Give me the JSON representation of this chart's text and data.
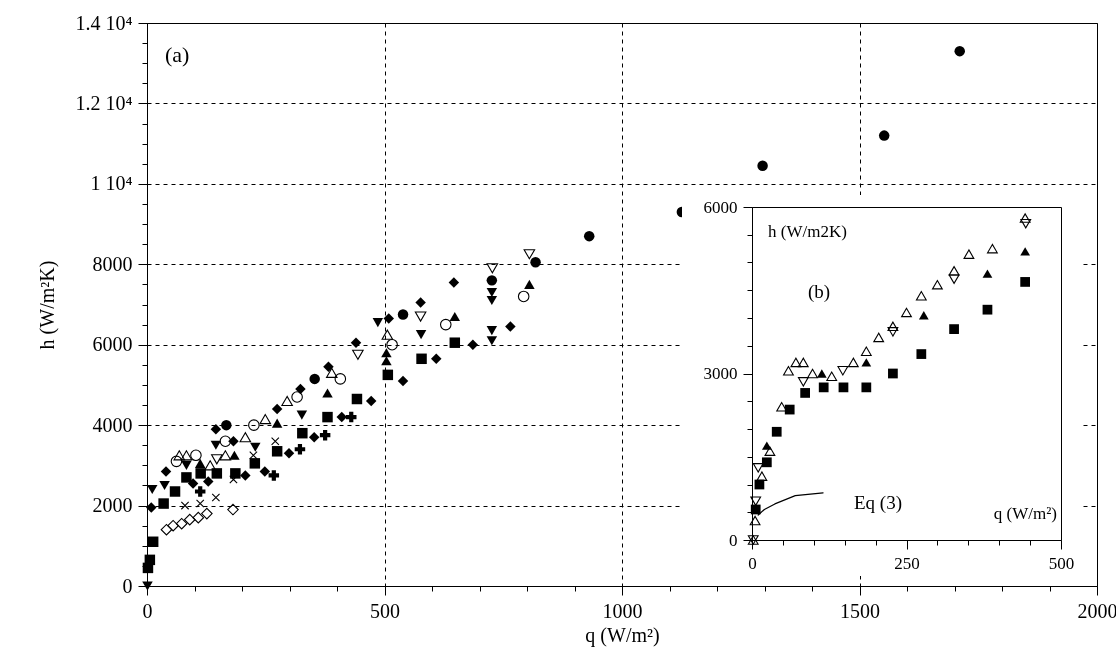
{
  "chart_data": [
    {
      "type": "scatter",
      "xlabel": "q  (W/m²)",
      "ylabel": "h  (W/m²K)",
      "annotations": [
        "(a)"
      ],
      "grid": true,
      "xlim": [
        0,
        2000
      ],
      "ylim": [
        0,
        14000
      ],
      "xticks": [
        0,
        {
          "value": 100,
          "label": null
        },
        {
          "value": 200,
          "label": null
        },
        {
          "value": 300,
          "label": null
        },
        {
          "value": 400,
          "label": null
        },
        500,
        {
          "value": 600,
          "label": null
        },
        {
          "value": 700,
          "label": null
        },
        {
          "value": 800,
          "label": null
        },
        {
          "value": 900,
          "label": null
        },
        1000,
        {
          "value": 1100,
          "label": null
        },
        {
          "value": 1200,
          "label": null
        },
        {
          "value": 1300,
          "label": null
        },
        {
          "value": 1400,
          "label": null
        },
        1500,
        {
          "value": 1600,
          "label": null
        },
        {
          "value": 1700,
          "label": null
        },
        {
          "value": 1800,
          "label": null
        },
        {
          "value": 1900,
          "label": null
        },
        2000
      ],
      "yticks": [
        0,
        {
          "value": 500,
          "label": null
        },
        {
          "value": 1000,
          "label": null
        },
        {
          "value": 1500,
          "label": null
        },
        2000,
        {
          "value": 2500,
          "label": null
        },
        {
          "value": 3000,
          "label": null
        },
        {
          "value": 3500,
          "label": null
        },
        4000,
        {
          "value": 4500,
          "label": null
        },
        {
          "value": 5000,
          "label": null
        },
        {
          "value": 5500,
          "label": null
        },
        6000,
        {
          "value": 6500,
          "label": null
        },
        {
          "value": 7000,
          "label": null
        },
        {
          "value": 7500,
          "label": null
        },
        8000,
        {
          "value": 8500,
          "label": null
        },
        {
          "value": 9000,
          "label": null
        },
        {
          "value": 9500,
          "label": null
        },
        {
          "value": 10000,
          "label": "1 10⁴"
        },
        {
          "value": 10500,
          "label": null
        },
        {
          "value": 11000,
          "label": null
        },
        {
          "value": 11500,
          "label": null
        },
        {
          "value": 12000,
          "label": "1.2 10⁴"
        },
        {
          "value": 12500,
          "label": null
        },
        {
          "value": 13000,
          "label": null
        },
        {
          "value": 13500,
          "label": null
        },
        {
          "value": 14000,
          "label": "1.4 10⁴"
        }
      ],
      "series": [
        {
          "marker": "circle",
          "color": "#000000",
          "x": [
            167,
            353,
            539,
            726,
            818,
            931,
            1126,
            1296,
            1552,
            1711
          ],
          "values": [
            4000,
            5150,
            6750,
            7600,
            8050,
            8700,
            9300,
            10450,
            11200,
            13300
          ]
        },
        {
          "marker": "circle-open",
          "color": "#000000",
          "x": [
            62,
            103,
            165,
            225,
            316,
            407,
            516,
            629,
            793
          ],
          "values": [
            3100,
            3250,
            3600,
            4000,
            4700,
            5150,
            6000,
            6500,
            7200
          ]
        },
        {
          "marker": "square",
          "color": "#000000",
          "x": [
            2,
            6,
            13,
            35,
            59,
            83,
            113,
            147,
            186,
            227,
            274,
            327,
            380,
            442,
            507,
            578,
            648
          ],
          "values": [
            450,
            650,
            1100,
            2050,
            2350,
            2700,
            2800,
            2800,
            2800,
            3050,
            3350,
            3800,
            4200,
            4650,
            5250,
            5650,
            6050
          ]
        },
        {
          "marker": "diamond",
          "color": "#000000",
          "x": [
            9,
            40,
            97,
            129,
            145,
            182,
            207,
            248,
            274,
            299,
            323,
            352,
            382,
            410,
            440,
            472,
            509,
            539,
            576,
            609,
            646,
            686,
            765
          ],
          "values": [
            1950,
            2850,
            2550,
            2600,
            3900,
            3600,
            2750,
            2850,
            4400,
            3300,
            4900,
            3700,
            5450,
            4200,
            6050,
            4600,
            6650,
            5100,
            7050,
            5650,
            7550,
            6000,
            6450
          ]
        },
        {
          "marker": "diamond-open",
          "color": "#000000",
          "x": [
            41,
            55,
            73,
            90,
            108,
            126,
            181
          ],
          "values": [
            1400,
            1500,
            1550,
            1650,
            1700,
            1800,
            1900
          ]
        },
        {
          "marker": "triangle",
          "color": "#000000",
          "x": [
            112,
            184,
            274,
            380,
            504,
            504,
            648,
            805
          ],
          "values": [
            3050,
            3250,
            4050,
            4800,
            5800,
            5600,
            6700,
            7500
          ]
        },
        {
          "marker": "triangle-open",
          "color": "#000000",
          "x": [
            68,
            83,
            133,
            165,
            207,
            249,
            295,
            389,
            506
          ],
          "values": [
            3250,
            3250,
            3000,
            3250,
            3700,
            4150,
            4600,
            5300,
            6250
          ]
        },
        {
          "marker": "triangle-down",
          "color": "#000000",
          "x": [
            1,
            11,
            37,
            83,
            145,
            228,
            326,
            486,
            577,
            726,
            726,
            726,
            726
          ],
          "values": [
            0,
            2400,
            2500,
            3000,
            3500,
            3450,
            4250,
            6550,
            6250,
            7300,
            7100,
            6350,
            6100
          ]
        },
        {
          "marker": "triangle-down-open",
          "color": "#000000",
          "x": [
            147,
            444,
            576,
            727,
            805
          ],
          "values": [
            3150,
            5750,
            6700,
            7900,
            8250
          ]
        },
        {
          "marker": "plus",
          "color": "#000000",
          "x": [
            112,
            267,
            322,
            375,
            430
          ],
          "values": [
            2350,
            2750,
            3400,
            3750,
            4200
          ]
        },
        {
          "marker": "cross",
          "color": "#000000",
          "x": [
            80,
            112,
            145,
            182,
            224,
            270
          ],
          "values": [
            2000,
            2050,
            2200,
            2650,
            3250,
            3600
          ]
        }
      ]
    },
    {
      "type": "scatter",
      "xlabel": "q (W/m²)",
      "ylabel": "h (W/m2K)",
      "annotations": [
        "(b)",
        "Eq (3)"
      ],
      "xlim": [
        0,
        500
      ],
      "ylim": [
        0,
        6000
      ],
      "xticks": [
        0,
        {
          "value": 50,
          "label": null
        },
        {
          "value": 100,
          "label": null
        },
        {
          "value": 150,
          "label": null
        },
        {
          "value": 200,
          "label": null
        },
        250,
        {
          "value": 300,
          "label": null
        },
        {
          "value": 350,
          "label": null
        },
        {
          "value": 400,
          "label": null
        },
        {
          "value": 450,
          "label": null
        },
        500
      ],
      "yticks": [
        0,
        {
          "value": 500,
          "label": null
        },
        {
          "value": 1000,
          "label": null
        },
        {
          "value": 1500,
          "label": null
        },
        {
          "value": 2000,
          "label": null
        },
        {
          "value": 2500,
          "label": null
        },
        3000,
        {
          "value": 3500,
          "label": null
        },
        {
          "value": 4000,
          "label": null
        },
        {
          "value": 4500,
          "label": null
        },
        {
          "value": 5000,
          "label": null
        },
        {
          "value": 5500,
          "label": null
        },
        6000
      ],
      "series": [
        {
          "marker": "square",
          "color": "#000000",
          "x": [
            6,
            12,
            24,
            40,
            61,
            86,
            116,
            148,
            185,
            228,
            274,
            327,
            381,
            442
          ],
          "values": [
            550,
            1000,
            1400,
            1950,
            2350,
            2650,
            2750,
            2750,
            2750,
            3000,
            3350,
            3800,
            4150,
            4650
          ]
        },
        {
          "marker": "triangle",
          "color": "#000000",
          "x": [
            24,
            113,
            185,
            278,
            381,
            442
          ],
          "values": [
            1700,
            3000,
            3200,
            4050,
            4800,
            5200
          ]
        },
        {
          "marker": "triangle-open",
          "color": "#000000",
          "x": [
            2,
            5,
            16,
            29,
            48,
            59,
            71,
            83,
            98,
            129,
            164,
            185,
            205,
            228,
            250,
            274,
            300,
            327,
            351,
            389,
            442
          ],
          "values": [
            0,
            350,
            1150,
            1600,
            2400,
            3050,
            3200,
            3200,
            3000,
            2950,
            3200,
            3400,
            3650,
            3850,
            4100,
            4400,
            4600,
            4850,
            5150,
            5250,
            5800
          ]
        },
        {
          "marker": "triangle-down-open",
          "color": "#000000",
          "x": [
            2,
            6,
            10,
            83,
            147,
            228,
            327,
            443
          ],
          "values": [
            0,
            700,
            1300,
            2850,
            3050,
            3750,
            4700,
            5700
          ]
        },
        {
          "type": "line",
          "marker": "none",
          "color": "#000000",
          "x": [
            10,
            20,
            37,
            70,
            115
          ],
          "values": [
            450,
            550,
            650,
            800,
            850
          ]
        }
      ]
    }
  ]
}
